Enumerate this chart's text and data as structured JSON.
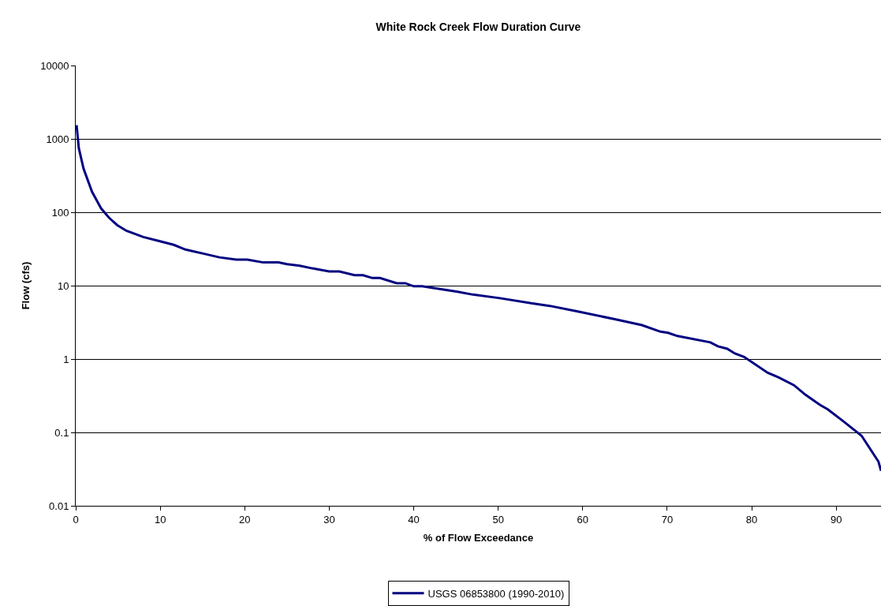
{
  "chart_data": {
    "type": "line",
    "title": "White Rock Creek Flow Duration Curve",
    "xlabel": "% of Flow Exceedance",
    "ylabel": "Flow (cfs)",
    "x": [
      0.1,
      0.37,
      0.93,
      1.93,
      3,
      3.95,
      4.9,
      6,
      8,
      9.7,
      11.6,
      13,
      15,
      17,
      19,
      20.3,
      22.2,
      24,
      25,
      26.5,
      28,
      30,
      31.2,
      33,
      34,
      35.1,
      36,
      38,
      39,
      40,
      41,
      45.2,
      47,
      50.2,
      53.9,
      56.1,
      59.2,
      63.9,
      67,
      69.2,
      70.1,
      71.2,
      75.1,
      76,
      77.1,
      78,
      79.1,
      81.9,
      83.2,
      85,
      86.3,
      88.1,
      89,
      90.9,
      93,
      95,
      95.3
    ],
    "series": [
      {
        "name": "USGS 06853800 (1990-2010)",
        "color": "#000080",
        "values": [
          1540,
          745,
          393,
          190,
          113,
          84,
          67,
          56,
          46,
          41,
          36,
          31,
          27.5,
          24.3,
          22.6,
          22.6,
          20.7,
          20.7,
          19.6,
          18.7,
          17.2,
          15.6,
          15.6,
          13.9,
          13.9,
          12.7,
          12.7,
          10.8,
          10.8,
          9.8,
          9.8,
          8.25,
          7.55,
          6.75,
          5.75,
          5.3,
          4.5,
          3.47,
          2.9,
          2.36,
          2.28,
          2.06,
          1.69,
          1.49,
          1.38,
          1.19,
          1.07,
          0.65,
          0.56,
          0.44,
          0.33,
          0.236,
          0.206,
          0.14,
          0.09,
          0.04,
          0.03
        ]
      }
    ],
    "xlim": [
      0,
      95.3
    ],
    "xticks": [
      0,
      10,
      20,
      30,
      40,
      50,
      60,
      70,
      80,
      90
    ],
    "ylim": [
      0.01,
      10000
    ],
    "yticks": [
      0.01,
      0.1,
      1,
      10,
      100,
      1000,
      10000
    ],
    "log": "y",
    "grid": "y",
    "legend": "bottom",
    "marker": "none",
    "line_style": "solid"
  }
}
